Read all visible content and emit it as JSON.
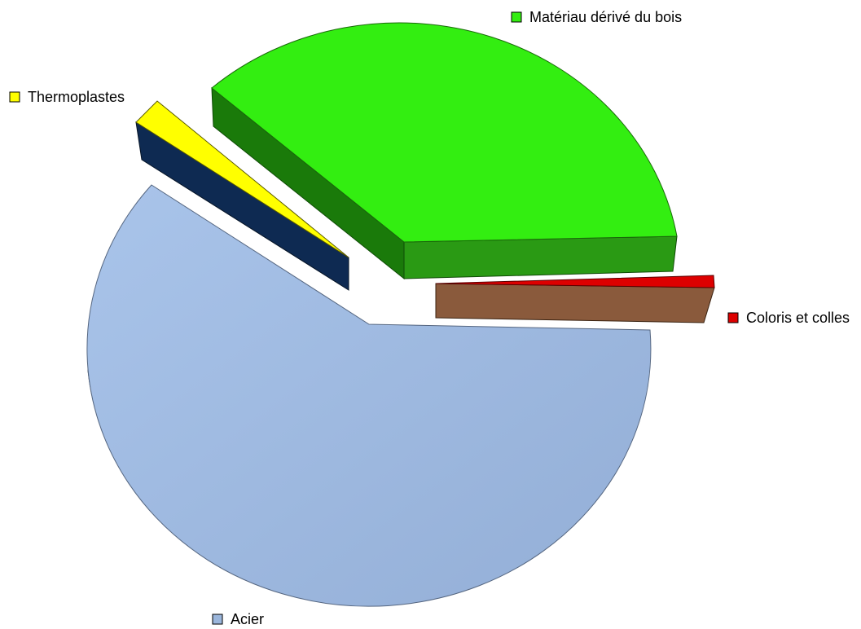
{
  "chart_data": {
    "type": "pie",
    "style": "3d-exploded",
    "slices": [
      {
        "label": "Matériau dérivé du bois",
        "value": 34.5,
        "color": "#33ee11",
        "side_color": "#1a8a0a"
      },
      {
        "label": "Coloris et colles",
        "value": 1.0,
        "color": "#dd0000",
        "side_color": "#8a5a3c"
      },
      {
        "label": "Acier",
        "value": 62.5,
        "color": "#9bb6dc",
        "side_color": "#4a5a78"
      },
      {
        "label": "Thermoplastes",
        "value": 2.0,
        "color": "#ffff00",
        "side_color": "#0e2a52"
      }
    ]
  }
}
